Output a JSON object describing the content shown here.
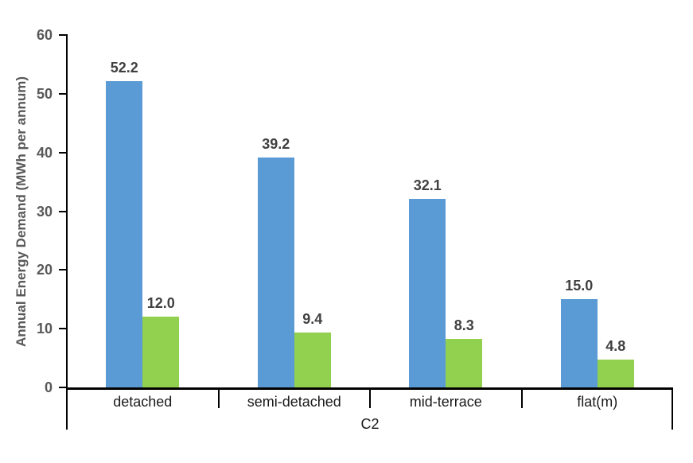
{
  "chart_data": {
    "type": "bar",
    "title": "",
    "xlabel": "C2",
    "ylabel": "Annual Energy Demand (MWh per annum)",
    "categories": [
      "detached",
      "semi-detached",
      "mid-terrace",
      "flat(m)"
    ],
    "series": [
      {
        "name": "blue-series",
        "color": "#5B9BD5",
        "values": [
          52.2,
          39.2,
          32.1,
          15.0
        ],
        "labels": [
          "52.2",
          "39.2",
          "32.1",
          "15.0"
        ]
      },
      {
        "name": "green-series",
        "color": "#92D050",
        "values": [
          12.0,
          9.4,
          8.3,
          4.8
        ],
        "labels": [
          "12.0",
          "9.4",
          "8.3",
          "4.8"
        ]
      }
    ],
    "ylim": [
      0,
      60
    ],
    "yticks": [
      0,
      10,
      20,
      30,
      40,
      50,
      60
    ],
    "ytick_labels": [
      "0",
      "10",
      "20",
      "30",
      "40",
      "50",
      "60"
    ],
    "grid": false,
    "legend": false,
    "data_labels": true,
    "axis_color": "#000000",
    "tick_label_color": "#595959",
    "data_label_color": "#404040",
    "category_label_color": "#1a1a1a"
  }
}
